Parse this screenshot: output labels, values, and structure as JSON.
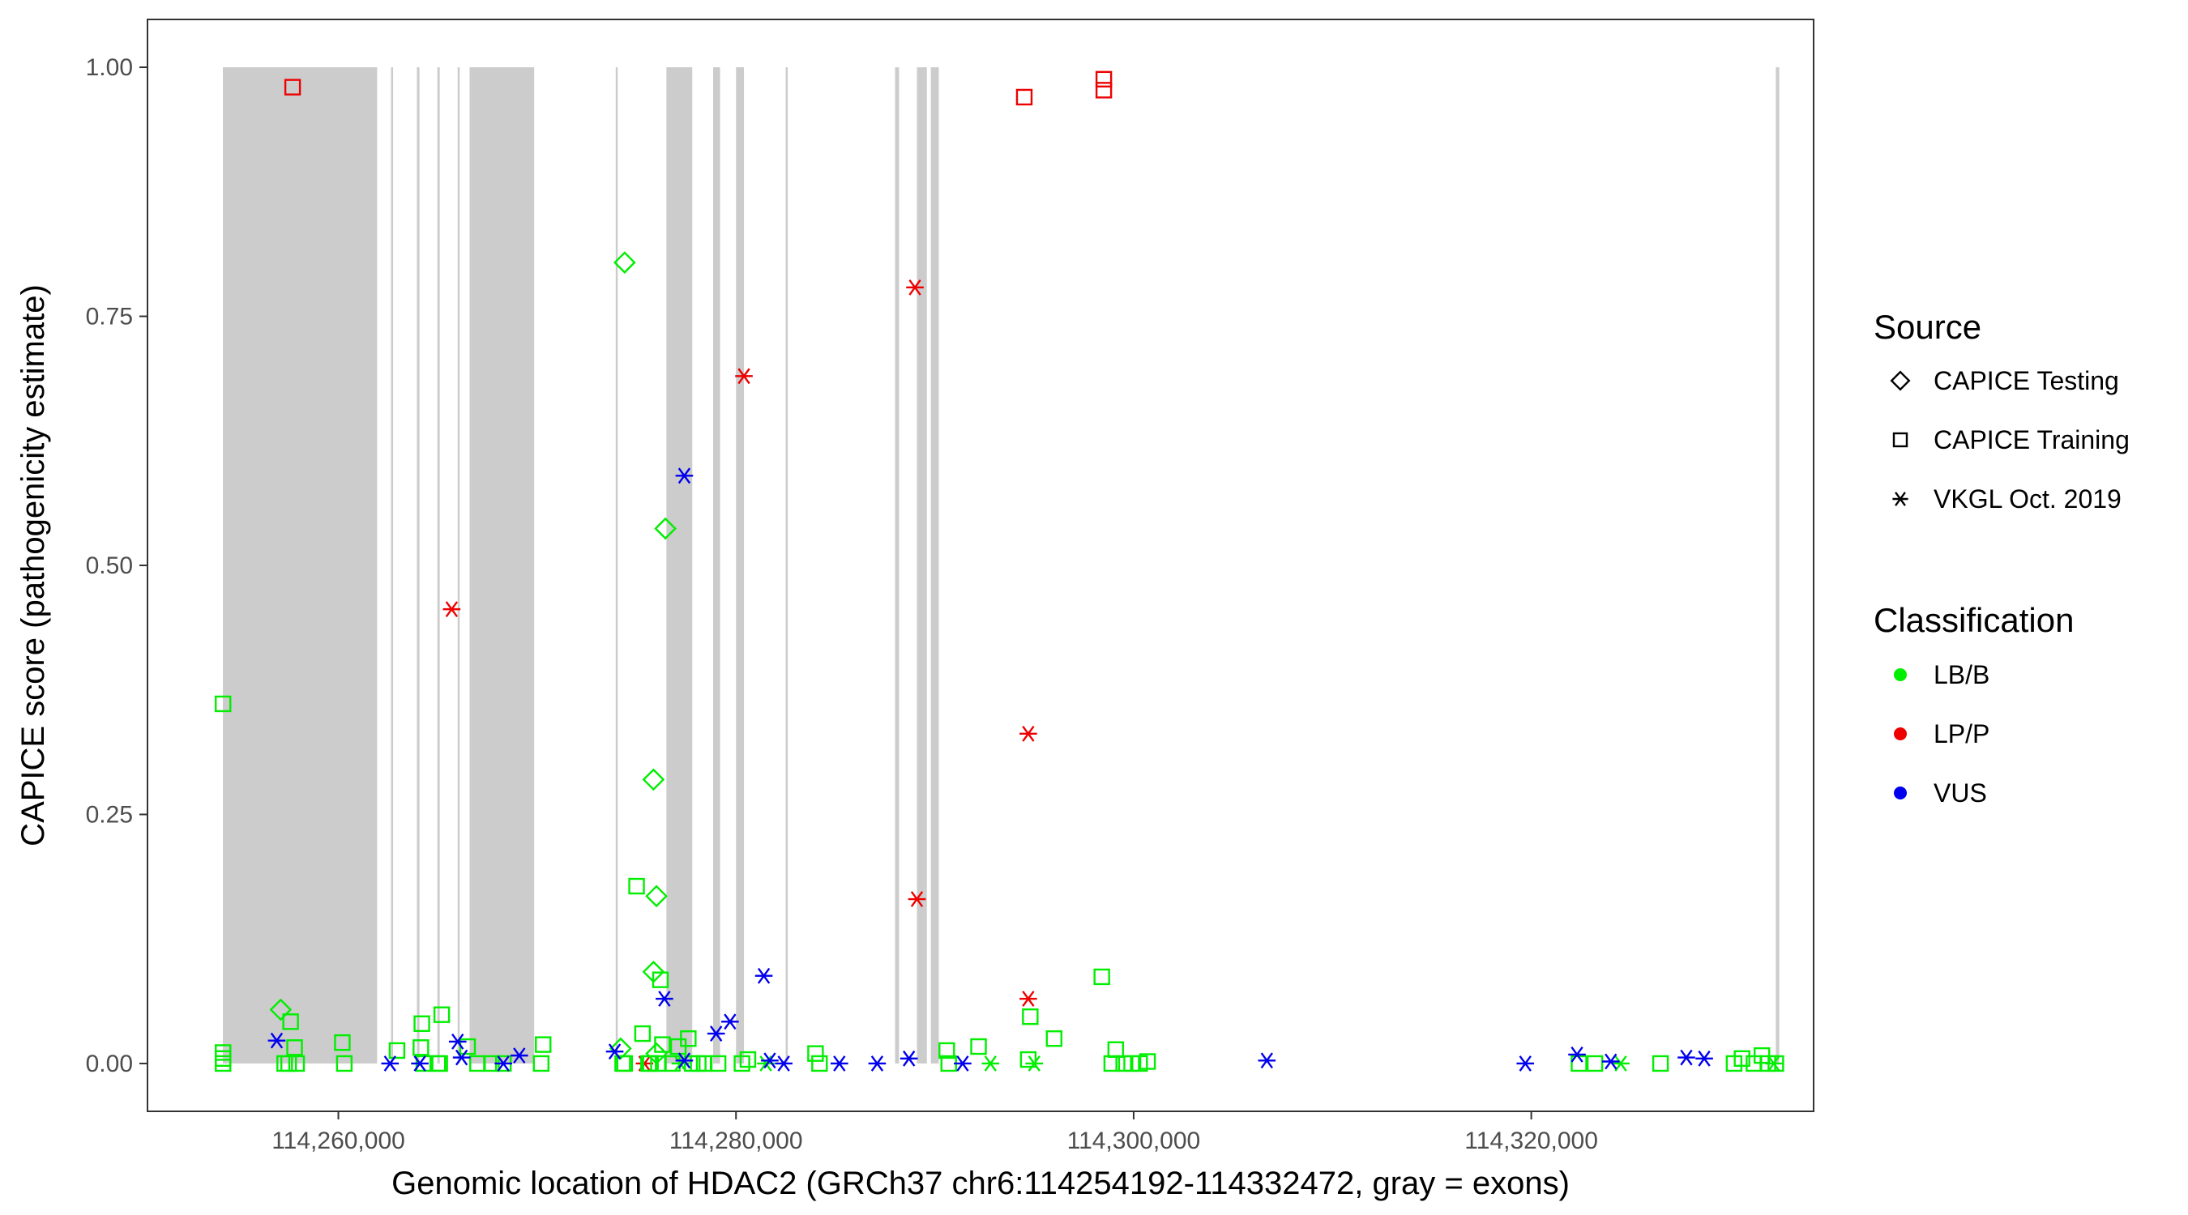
{
  "chart_data": {
    "type": "scatter",
    "title": "",
    "xlabel": "Genomic location of HDAC2 (GRCh37 chr6:114254192-114332472, gray = exons)",
    "ylabel": "CAPICE score (pathogenicity estimate)",
    "xlim": [
      114250400,
      114334200
    ],
    "ylim": [
      -0.048,
      1.048
    ],
    "xticks": [
      114260000,
      114280000,
      114300000,
      114320000
    ],
    "xtick_labels": [
      "114,260,000",
      "114,280,000",
      "114,300,000",
      "114,320,000"
    ],
    "yticks": [
      0,
      0.25,
      0.5,
      0.75,
      1
    ],
    "ytick_labels": [
      "0.00",
      "0.25",
      "0.50",
      "0.75",
      "1.00"
    ],
    "grid": false,
    "exons": [
      [
        114254192,
        114261950
      ],
      [
        114262650,
        114262750
      ],
      [
        114263950,
        114264080
      ],
      [
        114264980,
        114265100
      ],
      [
        114266000,
        114266080
      ],
      [
        114266600,
        114269850
      ],
      [
        114273950,
        114274050
      ],
      [
        114276500,
        114277800
      ],
      [
        114278850,
        114279200
      ],
      [
        114280000,
        114280400
      ],
      [
        114282500,
        114282560
      ],
      [
        114288000,
        114288200
      ],
      [
        114289100,
        114289600
      ],
      [
        114289800,
        114290200
      ],
      [
        114332300,
        114332472
      ]
    ],
    "colors": {
      "LB/B": "#00ee00",
      "LP/P": "#ee0000",
      "VUS": "#0000ee",
      "exon": "#cccccc"
    },
    "legend": {
      "position": "right",
      "source_title": "Source",
      "source_entries": [
        {
          "label": "CAPICE Testing",
          "shape": "diamond"
        },
        {
          "label": "CAPICE Training",
          "shape": "square"
        },
        {
          "label": "VKGL Oct. 2019",
          "shape": "asterisk"
        }
      ],
      "class_title": "Classification",
      "class_entries": [
        "LB/B",
        "LP/P",
        "VUS"
      ]
    },
    "series": [
      {
        "source": "CAPICE Training",
        "classification": "LP/P",
        "shape": "square",
        "x": [
          114257700,
          114294500,
          114298500,
          114298500
        ],
        "y": [
          0.98,
          0.97,
          0.988,
          0.977
        ]
      },
      {
        "source": "VKGL Oct. 2019",
        "classification": "LP/P",
        "shape": "asterisk",
        "x": [
          114289000,
          114289100,
          114280400,
          114265700,
          114294700,
          114294700,
          114275400
        ],
        "y": [
          0.779,
          0.165,
          0.69,
          0.456,
          0.331,
          0.065,
          0.0
        ]
      },
      {
        "source": "CAPICE Testing",
        "classification": "LB/B",
        "shape": "diamond",
        "x": [
          114274400,
          114276450,
          114275850,
          114276000,
          114275850,
          114257100,
          114274200,
          114276000
        ],
        "y": [
          0.804,
          0.537,
          0.285,
          0.168,
          0.092,
          0.054,
          0.015,
          0.01
        ]
      },
      {
        "source": "CAPICE Training",
        "classification": "LB/B",
        "shape": "square",
        "x": [
          114254200,
          114254200,
          114254200,
          114254200,
          114257800,
          114257600,
          114257300,
          114257500,
          114257900,
          114260200,
          114260300,
          114262950,
          114264200,
          114264150,
          114264300,
          114265200,
          114265000,
          114265100,
          114266500,
          114267700,
          114267000,
          114268300,
          114270300,
          114270200,
          114274400,
          114274300,
          114275000,
          114275300,
          114275700,
          114275600,
          114276200,
          114276100,
          114276300,
          114276800,
          114277100,
          114277600,
          114277800,
          114278100,
          114278400,
          114279100,
          114280600,
          114280300,
          114284000,
          114284200,
          114290600,
          114290700,
          114292200,
          114294800,
          114294700,
          114296000,
          114298400,
          114298900,
          114299100,
          114299500,
          114299900,
          114300300,
          114300700,
          114322400,
          114323200,
          114326500,
          114330200,
          114330600,
          114331200,
          114331600,
          114331900,
          114332300
        ],
        "y": [
          0.361,
          0.011,
          0.005,
          0.0,
          0.016,
          0.042,
          0.0,
          0.0,
          0.0,
          0.021,
          0.0,
          0.013,
          0.04,
          0.016,
          0.0,
          0.049,
          0.0,
          0.0,
          0.017,
          0.0,
          0.0,
          0.0,
          0.019,
          0.0,
          0.0,
          0.0,
          0.178,
          0.03,
          0.0,
          0.0,
          0.084,
          0.0,
          0.019,
          0.0,
          0.017,
          0.025,
          0.0,
          0.0,
          0.0,
          0.0,
          0.004,
          0.0,
          0.01,
          0.0,
          0.013,
          0.0,
          0.017,
          0.047,
          0.004,
          0.025,
          0.087,
          0.0,
          0.014,
          0.0,
          0.0,
          0.0,
          0.002,
          0.0,
          0.0,
          0.0,
          0.0,
          0.005,
          0.0,
          0.008,
          0.0,
          0.0
        ]
      },
      {
        "source": "VKGL Oct. 2019",
        "classification": "LB/B",
        "shape": "asterisk",
        "x": [
          114277200,
          114281500,
          114292800,
          114332200,
          114324500,
          114295000
        ],
        "y": [
          0.0,
          0.0,
          0.0,
          0.0,
          0.0,
          0.0
        ]
      },
      {
        "source": "VKGL Oct. 2019",
        "classification": "VUS",
        "shape": "asterisk",
        "x": [
          114277400,
          114256900,
          114262600,
          114264100,
          114266000,
          114266200,
          114268300,
          114269100,
          114273900,
          114276400,
          114279700,
          114279000,
          114277400,
          114281400,
          114281700,
          114282400,
          114285200,
          114287100,
          114288700,
          114291400,
          114306700,
          114319700,
          114322300,
          114324000,
          114328700,
          114327800
        ],
        "y": [
          0.59,
          0.023,
          0.0,
          0.0,
          0.022,
          0.006,
          0.0,
          0.008,
          0.012,
          0.065,
          0.042,
          0.03,
          0.003,
          0.088,
          0.003,
          0.0,
          0.0,
          0.0,
          0.005,
          0.0,
          0.003,
          0.0,
          0.009,
          0.002,
          0.005,
          0.006
        ]
      }
    ]
  }
}
